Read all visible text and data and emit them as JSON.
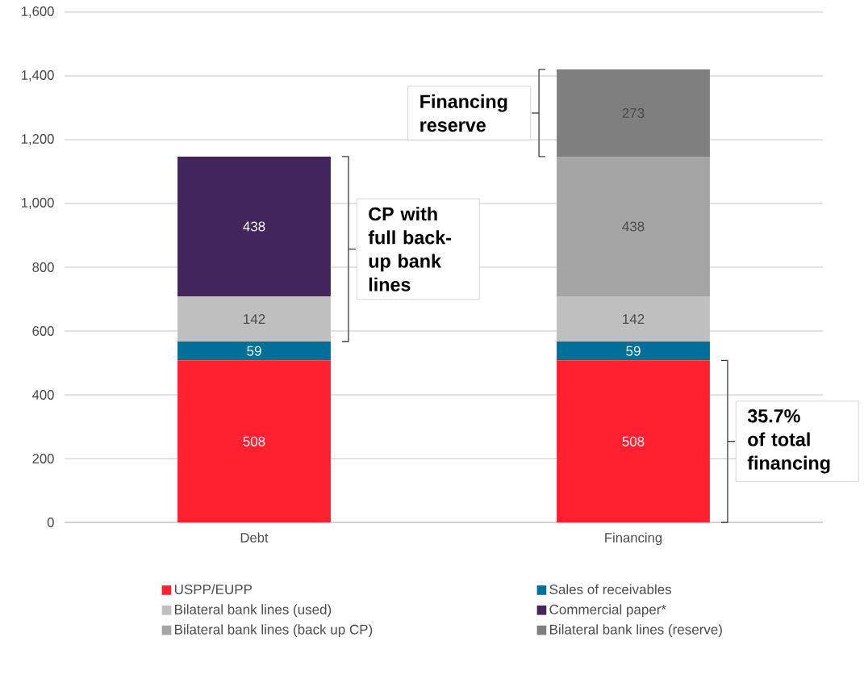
{
  "chart_data": {
    "type": "bar",
    "stacked": true,
    "categories": [
      "Debt",
      "Financing"
    ],
    "series": [
      {
        "name": "USPP/EUPP",
        "color": "#ff2030",
        "values": [
          508,
          508
        ]
      },
      {
        "name": "Sales of receivables",
        "color": "#00709a",
        "values": [
          59,
          59
        ]
      },
      {
        "name": "Bilateral bank lines (used)",
        "color": "#bfbfbf",
        "values": [
          142,
          142
        ]
      },
      {
        "name": "Commercial paper*",
        "color": "#42255a",
        "values": [
          438,
          null
        ]
      },
      {
        "name": "Bilateral bank lines (back up CP)",
        "color": "#a5a5a5",
        "values": [
          null,
          438
        ]
      },
      {
        "name": "Bilateral bank lines (reserve)",
        "color": "#7f7f7f",
        "values": [
          null,
          273
        ]
      }
    ],
    "ylim": [
      0,
      1600
    ],
    "yticks": [
      0,
      200,
      400,
      600,
      800,
      {
        "value": 1000,
        "label": "1,000"
      },
      {
        "value": 1200,
        "label": "1,200"
      },
      {
        "value": 1400,
        "label": "1,400"
      },
      {
        "value": 1600,
        "label": "1,600"
      }
    ],
    "grid": "y",
    "legend": "bottom",
    "data_labels": true,
    "annotations": [
      "CP with full back-up bank lines",
      "Financing reserve",
      "35.7% of total financing"
    ]
  }
}
